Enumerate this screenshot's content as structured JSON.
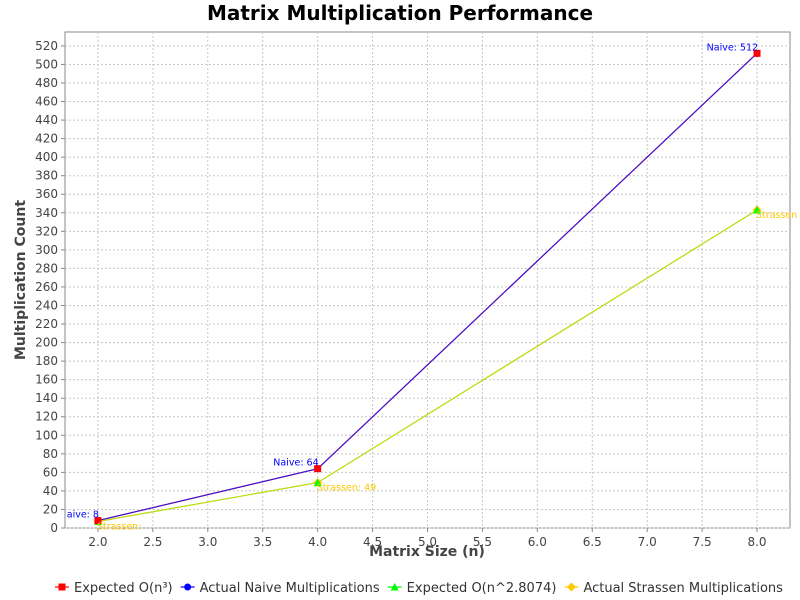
{
  "chart_data": {
    "type": "line",
    "title": "Matrix Multiplication Performance",
    "xlabel": "Matrix Size (n)",
    "ylabel": "Multiplication Count",
    "xlim": [
      1.7,
      8.3
    ],
    "ylim": [
      0,
      535
    ],
    "x_ticks": [
      "2.0",
      "2.5",
      "3.0",
      "3.5",
      "4.0",
      "4.5",
      "5.0",
      "5.5",
      "6.0",
      "6.5",
      "7.0",
      "7.5",
      "8.0"
    ],
    "y_ticks": [
      "0",
      "20",
      "40",
      "60",
      "80",
      "100",
      "120",
      "140",
      "160",
      "180",
      "200",
      "220",
      "240",
      "260",
      "280",
      "300",
      "320",
      "340",
      "360",
      "380",
      "400",
      "420",
      "440",
      "460",
      "480",
      "500",
      "520"
    ],
    "grid": true,
    "legend_position": "bottom",
    "series": [
      {
        "name": "Expected O(n³)",
        "color": "#ff0000",
        "marker": "square",
        "points": [
          {
            "x": 2,
            "y": 8
          },
          {
            "x": 4,
            "y": 64
          },
          {
            "x": 8,
            "y": 512
          }
        ],
        "labels": [
          "",
          "",
          ""
        ]
      },
      {
        "name": "Actual Naive Multiplications",
        "color": "#0000ff",
        "marker": "circle",
        "points": [
          {
            "x": 2,
            "y": 8
          },
          {
            "x": 4,
            "y": 64
          },
          {
            "x": 8,
            "y": 512
          }
        ],
        "labels": [
          "aive: 8",
          "Naive: 64",
          "Naive: 512"
        ]
      },
      {
        "name": "Expected O(n^2.8074)",
        "color": "#00ff00",
        "marker": "triangle",
        "points": [
          {
            "x": 2,
            "y": 7
          },
          {
            "x": 4,
            "y": 49
          },
          {
            "x": 8,
            "y": 343
          }
        ],
        "labels": [
          "",
          "",
          ""
        ]
      },
      {
        "name": "Actual Strassen Multiplications",
        "color": "#ffc800",
        "marker": "diamond",
        "points": [
          {
            "x": 2,
            "y": 7
          },
          {
            "x": 4,
            "y": 49
          },
          {
            "x": 8,
            "y": 343
          }
        ],
        "labels": [
          "Strassen: ",
          "Strassen: 49",
          "Strassen"
        ]
      }
    ]
  }
}
